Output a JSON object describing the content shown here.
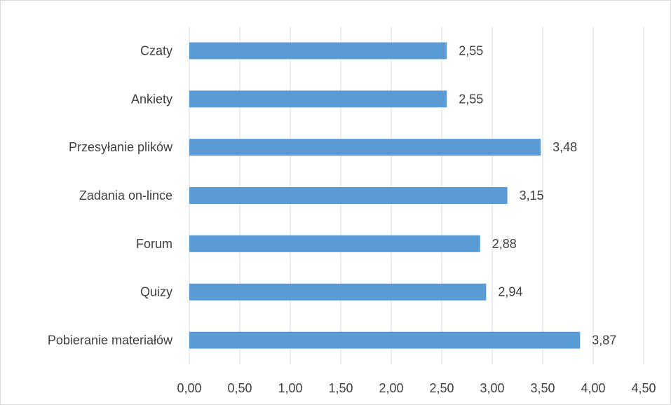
{
  "chart_data": {
    "type": "bar",
    "orientation": "horizontal",
    "categories": [
      "Czaty",
      "Ankiety",
      "Przesyłanie plików",
      "Zadania on-lince",
      "Forum",
      "Quizy",
      "Pobieranie materiałów"
    ],
    "values": [
      2.55,
      2.55,
      3.48,
      3.15,
      2.88,
      2.94,
      3.87
    ],
    "value_labels": [
      "2,55",
      "2,55",
      "3,48",
      "3,15",
      "2,88",
      "2,94",
      "3,87"
    ],
    "x_ticks": [
      "0,00",
      "0,50",
      "1,00",
      "1,50",
      "2,00",
      "2,50",
      "3,00",
      "3,50",
      "4,00",
      "4,50"
    ],
    "xlim": [
      0,
      4.5
    ],
    "grid": "vertical",
    "legend": "none",
    "bar_color": "#5b9bd5",
    "grid_color": "#d9d9d9",
    "border_color": "#d9d9d9",
    "text_color": "#404040"
  }
}
